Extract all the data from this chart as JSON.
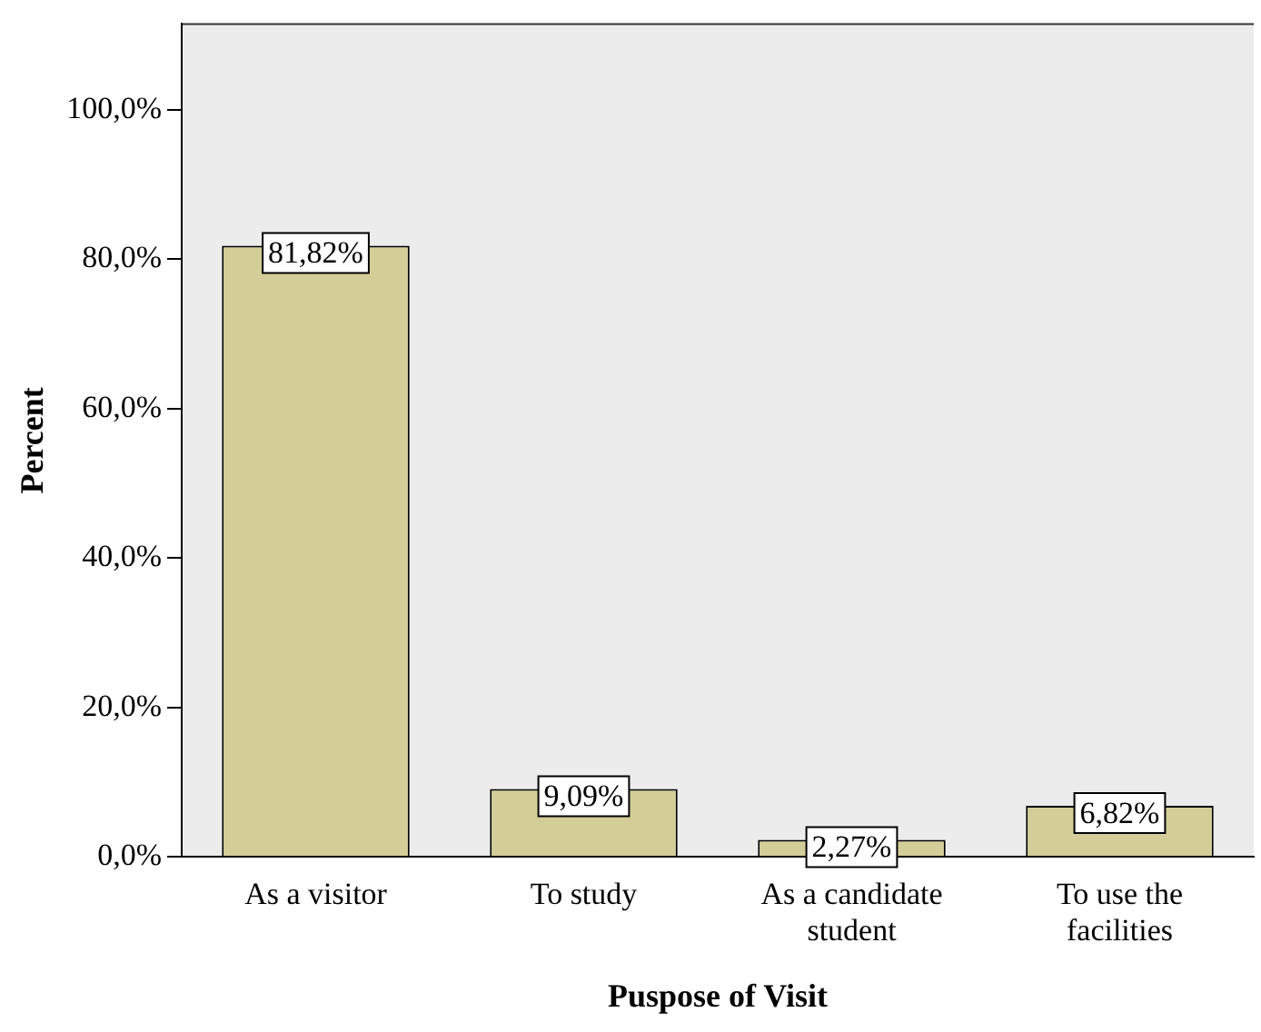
{
  "chart_data": {
    "type": "bar",
    "xlabel": "Puspose of Visit",
    "ylabel": "Percent",
    "categories": [
      "As a visitor",
      "To study",
      "As a candidate student",
      "To use the facilities"
    ],
    "values": [
      81.82,
      9.09,
      2.27,
      6.82
    ],
    "value_labels": [
      "81,82%",
      "9,09%",
      "2,27%",
      "6,82%"
    ],
    "color": "#d3ce97",
    "ylim": [
      0,
      111.5
    ],
    "yticks": [
      {
        "value": 0,
        "label": "0,0%"
      },
      {
        "value": 20,
        "label": "20,0%"
      },
      {
        "value": 40,
        "label": "40,0%"
      },
      {
        "value": 60,
        "label": "60,0%"
      },
      {
        "value": 80,
        "label": "80,0%"
      },
      {
        "value": 100,
        "label": "100,0%"
      }
    ],
    "grid": false,
    "legend": false
  }
}
